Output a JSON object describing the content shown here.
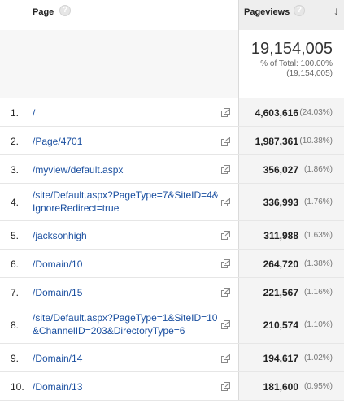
{
  "header": {
    "page_label": "Page",
    "pageviews_label": "Pageviews",
    "help_glyph": "?",
    "sort_glyph": "↓"
  },
  "totals": {
    "value": "19,154,005",
    "pct_line": "% of Total: 100.00%",
    "paren_line": "(19,154,005)"
  },
  "rows": [
    {
      "rank": "1.",
      "page": "/",
      "pageviews": "4,603,616",
      "pct": "(24.03%)"
    },
    {
      "rank": "2.",
      "page": "/Page/4701",
      "pageviews": "1,987,361",
      "pct": "(10.38%)"
    },
    {
      "rank": "3.",
      "page": "/myview/default.aspx",
      "pageviews": "356,027",
      "pct": "(1.86%)"
    },
    {
      "rank": "4.",
      "page": "/site/Default.aspx?PageType=7&SiteID=4&IgnoreRedirect=true",
      "pageviews": "336,993",
      "pct": "(1.76%)"
    },
    {
      "rank": "5.",
      "page": "/jacksonhigh",
      "pageviews": "311,988",
      "pct": "(1.63%)"
    },
    {
      "rank": "6.",
      "page": "/Domain/10",
      "pageviews": "264,720",
      "pct": "(1.38%)"
    },
    {
      "rank": "7.",
      "page": "/Domain/15",
      "pageviews": "221,567",
      "pct": "(1.16%)"
    },
    {
      "rank": "8.",
      "page": "/site/Default.aspx?PageType=1&SiteID=10&ChannelID=203&DirectoryType=6",
      "pageviews": "210,574",
      "pct": "(1.10%)"
    },
    {
      "rank": "9.",
      "page": "/Domain/14",
      "pageviews": "194,617",
      "pct": "(1.02%)"
    },
    {
      "rank": "10.",
      "page": "/Domain/13",
      "pageviews": "181,600",
      "pct": "(0.95%)"
    }
  ],
  "icons": {
    "help": "help-circle-icon",
    "sort": "sort-descending-arrow-icon",
    "open": "open-in-new-window-icon"
  },
  "colors": {
    "link": "#1a4fa0",
    "header_sorted_bg": "#eeeeee",
    "value_column_bg": "#f4f4f4",
    "totals_left_bg": "#f7f7f7"
  }
}
